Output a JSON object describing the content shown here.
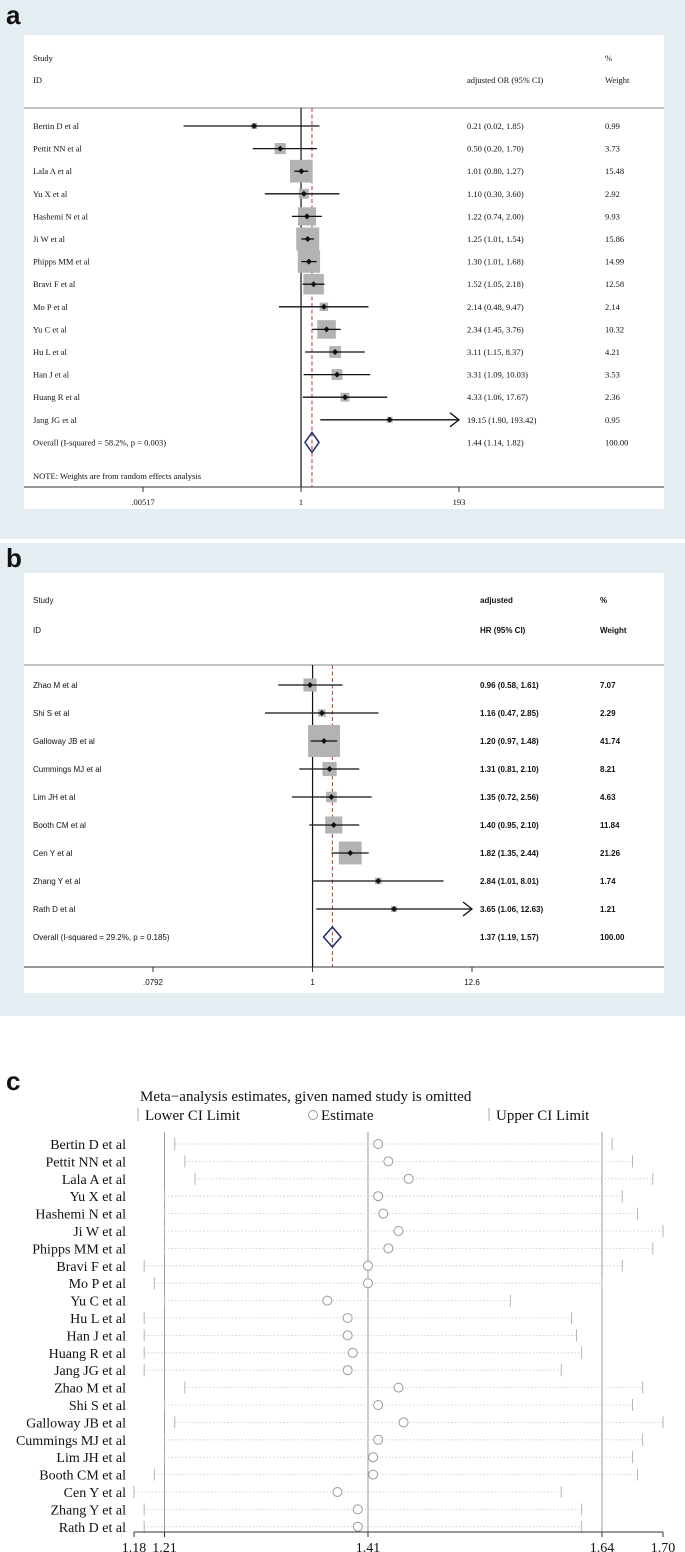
{
  "panel_a": {
    "label": "a",
    "header": {
      "study": "Study",
      "id": "ID",
      "estimate": "adjusted OR (95% CI)",
      "pct": "%",
      "weight": "Weight"
    },
    "studies": [
      {
        "name": "Bertin D et al",
        "ci_text": "0.21 (0.02, 1.85)",
        "weight": "0.99"
      },
      {
        "name": "Pettit NN et al",
        "ci_text": "0.50 (0.20, 1.70)",
        "weight": "3.73"
      },
      {
        "name": "Lala A et al",
        "ci_text": "1.01 (0.80, 1.27)",
        "weight": "15.48"
      },
      {
        "name": "Yu X et al",
        "ci_text": "1.10 (0.30, 3.60)",
        "weight": "2.92"
      },
      {
        "name": "Hashemi N et al",
        "ci_text": "1.22 (0.74, 2.00)",
        "weight": "9.93"
      },
      {
        "name": "Ji W et al",
        "ci_text": "1.25 (1.01, 1.54)",
        "weight": "15.86"
      },
      {
        "name": "Phipps MM et al",
        "ci_text": "1.30 (1.01, 1.68)",
        "weight": "14.99"
      },
      {
        "name": "Bravi F et al",
        "ci_text": "1.52 (1.05, 2.18)",
        "weight": "12.58"
      },
      {
        "name": "Mo P et al",
        "ci_text": "2.14 (0.48, 9.47)",
        "weight": "2.14"
      },
      {
        "name": "Yu C et al",
        "ci_text": "2.34 (1.45, 3.76)",
        "weight": "10.32"
      },
      {
        "name": "Hu L et al",
        "ci_text": "3.11 (1.15, 8.37)",
        "weight": "4.21"
      },
      {
        "name": "Han J et al",
        "ci_text": "3.31 (1.09, 10.03)",
        "weight": "3.53"
      },
      {
        "name": "Huang R et al",
        "ci_text": "4.33 (1.06, 17.67)",
        "weight": "2.36"
      },
      {
        "name": "Jang JG et al",
        "ci_text": "19.15 (1.90, 193.42)",
        "weight": "0.95"
      }
    ],
    "overall": {
      "name": "Overall  (I-squared = 58.2%, p = 0.003)",
      "ci_text": "1.44 (1.14, 1.82)",
      "weight": "100.00"
    },
    "note": "NOTE: Weights are from random effects analysis",
    "axis_ticks": [
      ".00517",
      "1",
      "193"
    ]
  },
  "panel_b": {
    "label": "b",
    "header": {
      "study": "Study",
      "id": "ID",
      "estimate1": "adjusted",
      "estimate2": "HR (95% CI)",
      "pct": "%",
      "weight": "Weight"
    },
    "studies": [
      {
        "name": "Zhao M et al",
        "ci_text": "0.96 (0.58, 1.61)",
        "weight": "7.07"
      },
      {
        "name": "Shi S et al",
        "ci_text": "1.16 (0.47, 2.85)",
        "weight": "2.29"
      },
      {
        "name": "Galloway JB et al",
        "ci_text": "1.20 (0.97, 1.48)",
        "weight": "41.74"
      },
      {
        "name": "Cummings MJ et al",
        "ci_text": "1.31 (0.81, 2.10)",
        "weight": "8.21"
      },
      {
        "name": "Lim JH et al",
        "ci_text": "1.35 (0.72, 2.56)",
        "weight": "4.63"
      },
      {
        "name": "Booth CM et al",
        "ci_text": "1.40 (0.95, 2.10)",
        "weight": "11.84"
      },
      {
        "name": "Cen Y et al",
        "ci_text": "1.82 (1.35, 2.44)",
        "weight": "21.26"
      },
      {
        "name": "Zhang Y et al",
        "ci_text": "2.84 (1.01, 8.01)",
        "weight": "1.74"
      },
      {
        "name": "Rath D et al",
        "ci_text": "3.65 (1.06, 12.63)",
        "weight": "1.21"
      }
    ],
    "overall": {
      "name": "Overall  (I-squared = 29.2%, p = 0.185)",
      "ci_text": "1.37 (1.19, 1.57)",
      "weight": "100.00"
    },
    "axis_ticks": [
      ".0792",
      "1",
      "12.6"
    ]
  },
  "panel_c": {
    "label": "c",
    "title": "Meta−analysis estimates, given named study is omitted",
    "legend": {
      "lower": "Lower CI Limit",
      "estimate": "Estimate",
      "upper": "Upper CI Limit"
    },
    "axis_ticks": [
      "1.18",
      "1.21",
      "1.41",
      "1.64",
      "1.70"
    ]
  },
  "chart_data": [
    {
      "type": "forest",
      "panel": "a",
      "measure": "adjusted OR (95% CI)",
      "scale": "log",
      "xlim": [
        0.00517,
        193
      ],
      "null_line": 1,
      "pooled_line": 1.44,
      "studies": [
        {
          "name": "Bertin D et al",
          "est": 0.21,
          "lo": 0.02,
          "hi": 1.85,
          "weight": 0.99
        },
        {
          "name": "Pettit NN et al",
          "est": 0.5,
          "lo": 0.2,
          "hi": 1.7,
          "weight": 3.73
        },
        {
          "name": "Lala A et al",
          "est": 1.01,
          "lo": 0.8,
          "hi": 1.27,
          "weight": 15.48
        },
        {
          "name": "Yu X et al",
          "est": 1.1,
          "lo": 0.3,
          "hi": 3.6,
          "weight": 2.92
        },
        {
          "name": "Hashemi N et al",
          "est": 1.22,
          "lo": 0.74,
          "hi": 2.0,
          "weight": 9.93
        },
        {
          "name": "Ji W et al",
          "est": 1.25,
          "lo": 1.01,
          "hi": 1.54,
          "weight": 15.86
        },
        {
          "name": "Phipps MM et al",
          "est": 1.3,
          "lo": 1.01,
          "hi": 1.68,
          "weight": 14.99
        },
        {
          "name": "Bravi F et al",
          "est": 1.52,
          "lo": 1.05,
          "hi": 2.18,
          "weight": 12.58
        },
        {
          "name": "Mo P et al",
          "est": 2.14,
          "lo": 0.48,
          "hi": 9.47,
          "weight": 2.14
        },
        {
          "name": "Yu C et al",
          "est": 2.34,
          "lo": 1.45,
          "hi": 3.76,
          "weight": 10.32
        },
        {
          "name": "Hu L et al",
          "est": 3.11,
          "lo": 1.15,
          "hi": 8.37,
          "weight": 4.21
        },
        {
          "name": "Han J et al",
          "est": 3.31,
          "lo": 1.09,
          "hi": 10.03,
          "weight": 3.53
        },
        {
          "name": "Huang R et al",
          "est": 4.33,
          "lo": 1.06,
          "hi": 17.67,
          "weight": 2.36
        },
        {
          "name": "Jang JG et al",
          "est": 19.15,
          "lo": 1.9,
          "hi": 193.42,
          "weight": 0.95
        }
      ],
      "overall": {
        "est": 1.44,
        "lo": 1.14,
        "hi": 1.82,
        "i_squared": 58.2,
        "p": 0.003
      }
    },
    {
      "type": "forest",
      "panel": "b",
      "measure": "adjusted HR (95% CI)",
      "scale": "log",
      "xlim": [
        0.0792,
        12.6
      ],
      "null_line": 1,
      "pooled_line": 1.37,
      "studies": [
        {
          "name": "Zhao M et al",
          "est": 0.96,
          "lo": 0.58,
          "hi": 1.61,
          "weight": 7.07
        },
        {
          "name": "Shi S et al",
          "est": 1.16,
          "lo": 0.47,
          "hi": 2.85,
          "weight": 2.29
        },
        {
          "name": "Galloway JB et al",
          "est": 1.2,
          "lo": 0.97,
          "hi": 1.48,
          "weight": 41.74
        },
        {
          "name": "Cummings MJ et al",
          "est": 1.31,
          "lo": 0.81,
          "hi": 2.1,
          "weight": 8.21
        },
        {
          "name": "Lim JH et al",
          "est": 1.35,
          "lo": 0.72,
          "hi": 2.56,
          "weight": 4.63
        },
        {
          "name": "Booth CM et al",
          "est": 1.4,
          "lo": 0.95,
          "hi": 2.1,
          "weight": 11.84
        },
        {
          "name": "Cen Y et al",
          "est": 1.82,
          "lo": 1.35,
          "hi": 2.44,
          "weight": 21.26
        },
        {
          "name": "Zhang Y et al",
          "est": 2.84,
          "lo": 1.01,
          "hi": 8.01,
          "weight": 1.74
        },
        {
          "name": "Rath D et al",
          "est": 3.65,
          "lo": 1.06,
          "hi": 12.63,
          "weight": 1.21
        }
      ],
      "overall": {
        "est": 1.37,
        "lo": 1.19,
        "hi": 1.57,
        "i_squared": 29.2,
        "p": 0.185
      }
    },
    {
      "type": "sensitivity",
      "panel": "c",
      "title": "Meta−analysis estimates, given named study is omitted",
      "xlim": [
        1.18,
        1.7
      ],
      "ref_lines": [
        1.21,
        1.41,
        1.64
      ],
      "rows": [
        {
          "name": "Bertin D et al",
          "lo": 1.22,
          "est": 1.42,
          "hi": 1.65
        },
        {
          "name": "Pettit NN et al",
          "lo": 1.23,
          "est": 1.43,
          "hi": 1.67
        },
        {
          "name": "Lala A et al",
          "lo": 1.24,
          "est": 1.45,
          "hi": 1.69
        },
        {
          "name": "Yu X et al",
          "lo": 1.21,
          "est": 1.42,
          "hi": 1.66
        },
        {
          "name": "Hashemi N et al",
          "lo": 1.21,
          "est": 1.425,
          "hi": 1.675
        },
        {
          "name": "Ji W et al",
          "lo": 1.21,
          "est": 1.44,
          "hi": 1.7
        },
        {
          "name": "Phipps MM et al",
          "lo": 1.21,
          "est": 1.43,
          "hi": 1.69
        },
        {
          "name": "Bravi F et al",
          "lo": 1.19,
          "est": 1.41,
          "hi": 1.66
        },
        {
          "name": "Mo P et al",
          "lo": 1.2,
          "est": 1.41,
          "hi": 1.64
        },
        {
          "name": "Yu C et al",
          "lo": 1.21,
          "est": 1.37,
          "hi": 1.55
        },
        {
          "name": "Hu L et al",
          "lo": 1.19,
          "est": 1.39,
          "hi": 1.61
        },
        {
          "name": "Han J et al",
          "lo": 1.19,
          "est": 1.39,
          "hi": 1.615
        },
        {
          "name": "Huang R et al",
          "lo": 1.19,
          "est": 1.395,
          "hi": 1.62
        },
        {
          "name": "Jang JG et al",
          "lo": 1.19,
          "est": 1.39,
          "hi": 1.6
        },
        {
          "name": "Zhao M et al",
          "lo": 1.23,
          "est": 1.44,
          "hi": 1.68
        },
        {
          "name": "Shi S et al",
          "lo": 1.21,
          "est": 1.42,
          "hi": 1.67
        },
        {
          "name": "Galloway JB et al",
          "lo": 1.22,
          "est": 1.445,
          "hi": 1.7
        },
        {
          "name": "Cummings MJ et al",
          "lo": 1.21,
          "est": 1.42,
          "hi": 1.68
        },
        {
          "name": "Lim JH et al",
          "lo": 1.21,
          "est": 1.415,
          "hi": 1.67
        },
        {
          "name": "Booth CM et al",
          "lo": 1.2,
          "est": 1.415,
          "hi": 1.675
        },
        {
          "name": "Cen Y et al",
          "lo": 1.18,
          "est": 1.38,
          "hi": 1.6
        },
        {
          "name": "Zhang Y et al",
          "lo": 1.19,
          "est": 1.4,
          "hi": 1.62
        },
        {
          "name": "Rath D et al",
          "lo": 1.19,
          "est": 1.4,
          "hi": 1.62
        }
      ]
    }
  ]
}
